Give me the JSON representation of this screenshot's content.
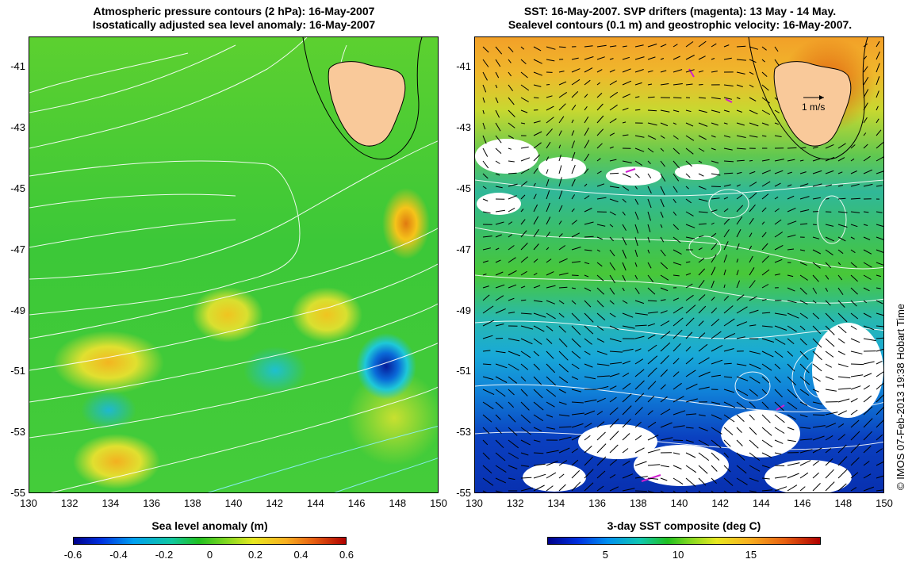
{
  "left_map": {
    "title_line1": "Atmospheric pressure contours (2 hPa): 16-May-2007",
    "title_line2": "Isostatically adjusted sea level anomaly: 16-May-2007",
    "colorbar_label": "Sea level anomaly (m)",
    "colorbar_ticks": [
      "-0.6",
      "-0.4",
      "-0.2",
      "0",
      "0.2",
      "0.4",
      "0.6"
    ]
  },
  "right_map": {
    "title_line1": "SST: 16-May-2007. SVP drifters (magenta): 13 May - 14 May.",
    "title_line2": "Sealevel contours (0.1 m) and geostrophic velocity: 16-May-2007.",
    "colorbar_label": "3-day SST composite (deg C)",
    "colorbar_ticks": [
      "5",
      "10",
      "15"
    ],
    "vector_scale_label": "1 m/s"
  },
  "axes": {
    "x_ticks": [
      "130",
      "132",
      "134",
      "136",
      "138",
      "140",
      "142",
      "144",
      "146",
      "148",
      "150"
    ],
    "y_ticks": [
      "-41",
      "-43",
      "-45",
      "-47",
      "-49",
      "-51",
      "-53",
      "-55"
    ],
    "lon_range": [
      130,
      150
    ],
    "lat_range": [
      -55,
      -40
    ]
  },
  "copyright": "© IMOS 07-Feb-2013 19:38 Hobart Time",
  "colors": {
    "land": "#f9c99a",
    "contour_white": "#ffffff",
    "drifter_magenta": "#d020d0"
  }
}
